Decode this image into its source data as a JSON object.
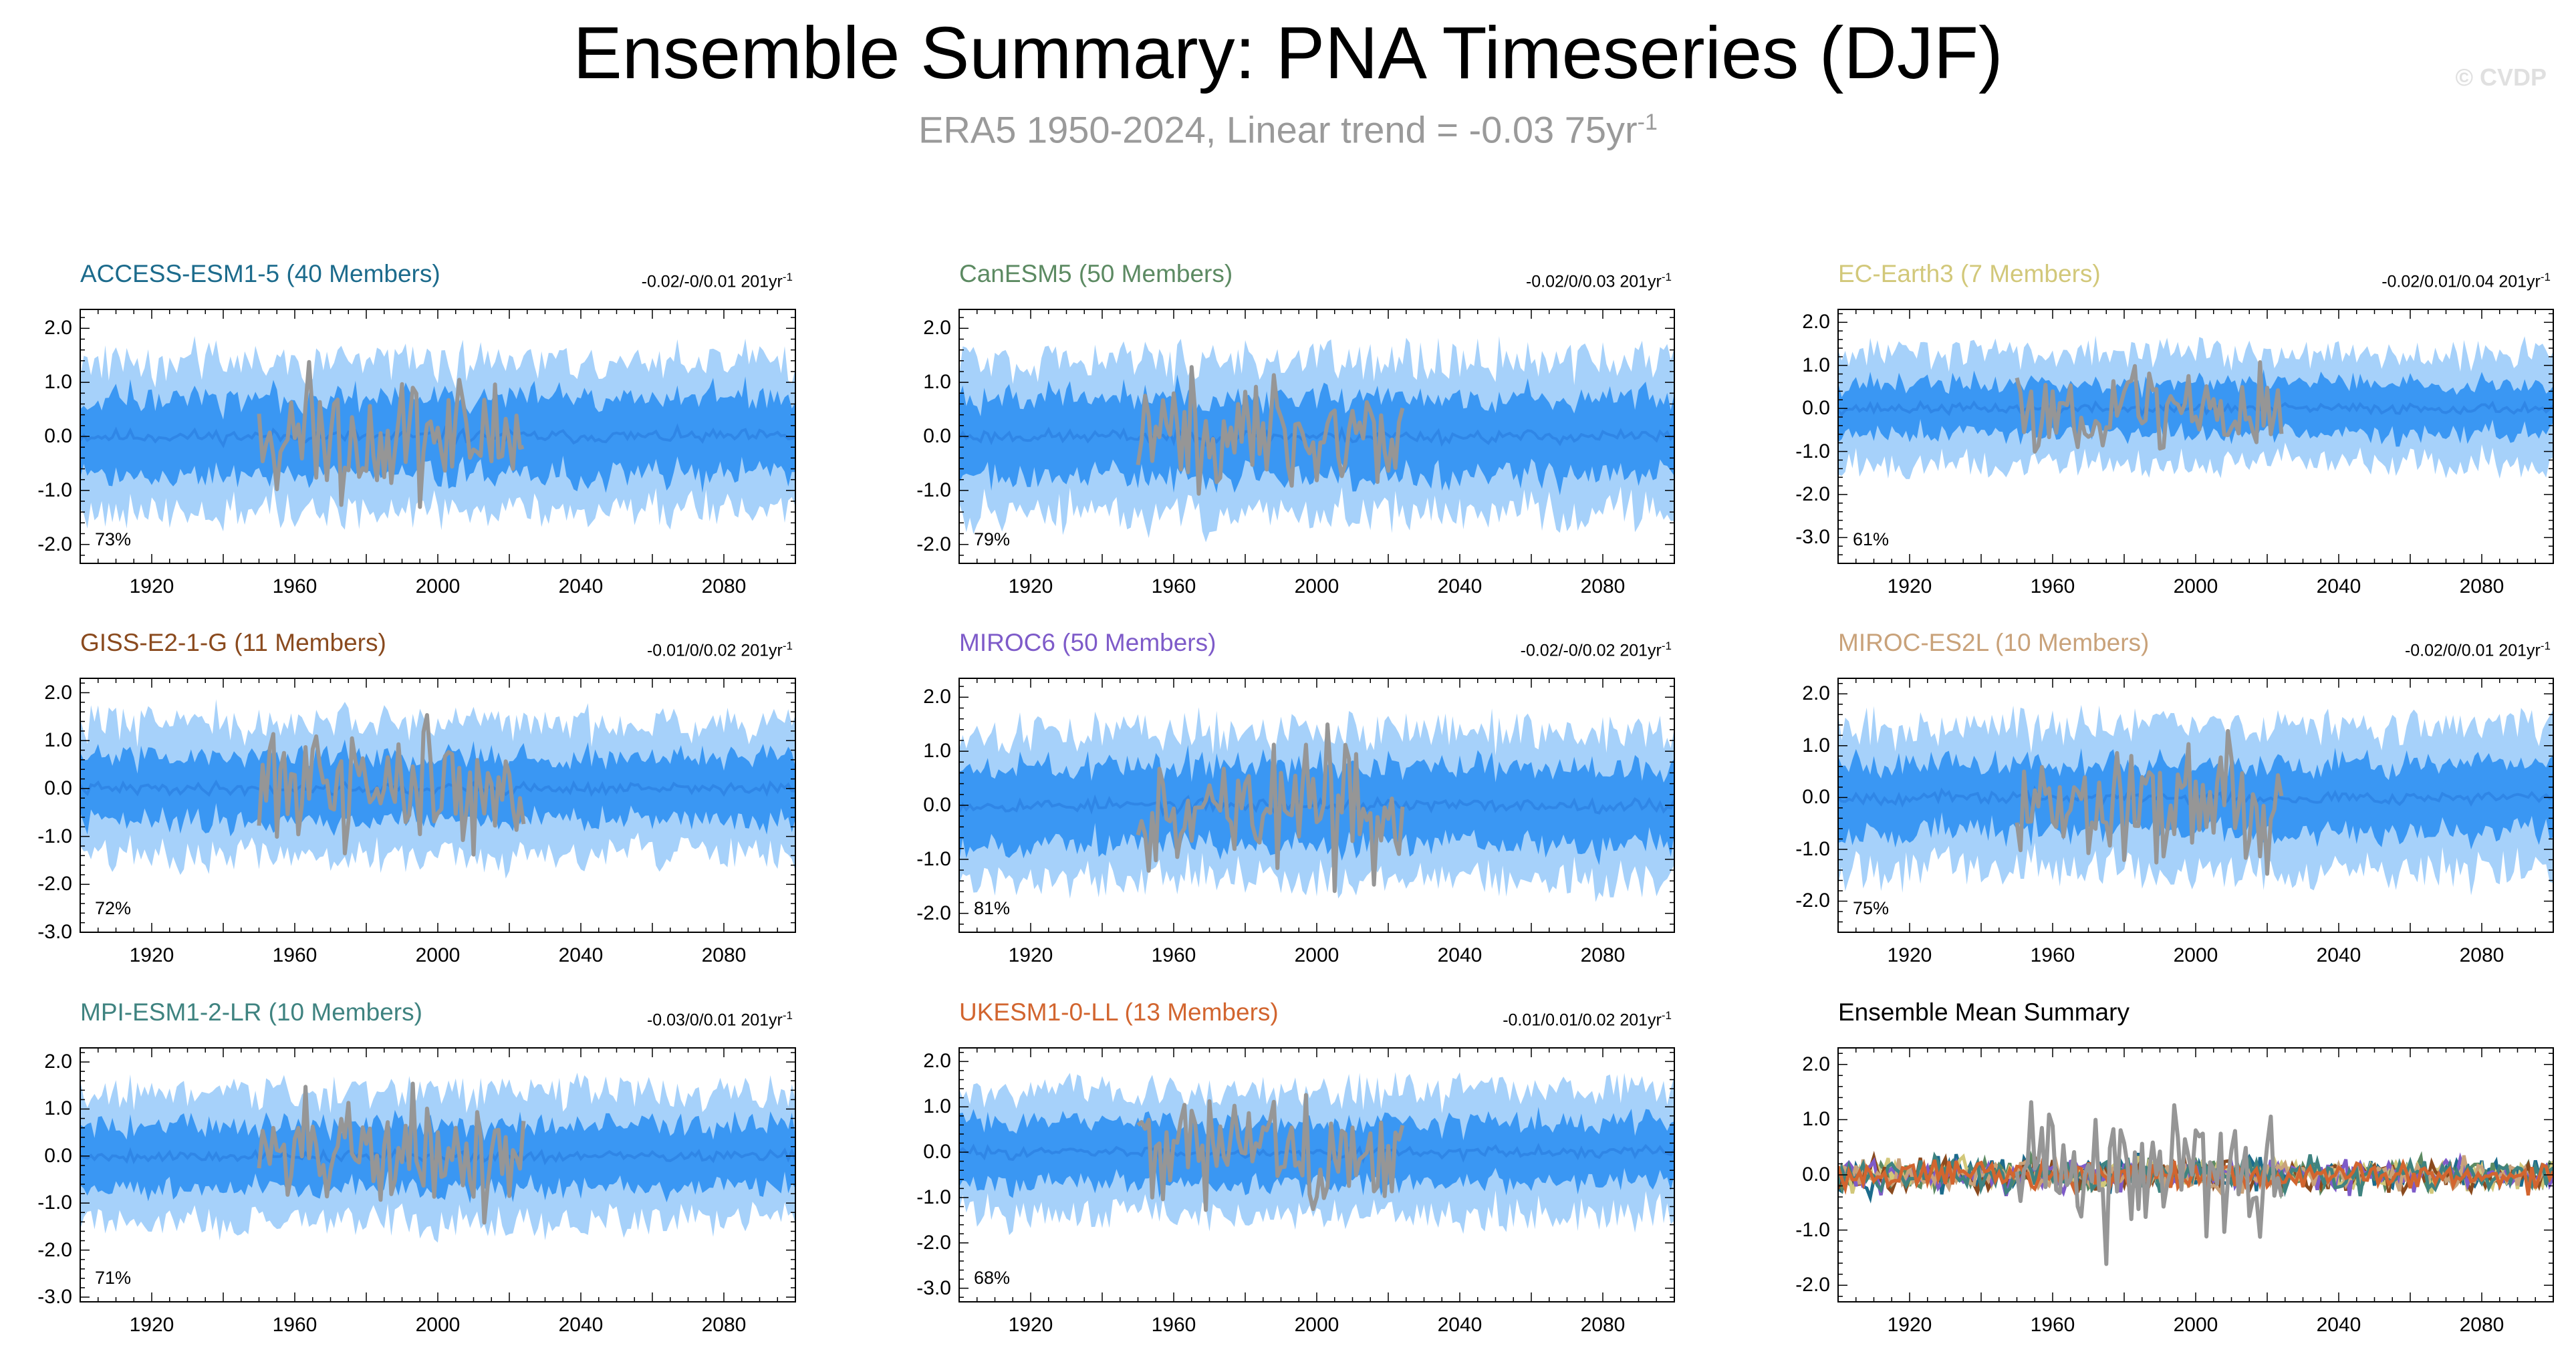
{
  "title": "Ensemble Summary: PNA Timeseries (DJF)",
  "subtitle": {
    "text": "ERA5 1950-2024, Linear trend = -0.03 75yr",
    "superscript": "-1"
  },
  "watermark": "© CVDP",
  "colors": {
    "band_outer": "#a6d1fa",
    "band_inner": "#3a97f3",
    "ensemble_mean": "#2f86e6",
    "observation": "#969696",
    "frame": "#000000"
  },
  "chart_data": [
    {
      "type": "line",
      "title": "ACCESS-ESM1-5 (40 Members)",
      "title_color": "#1c6b8c",
      "trend_text": "-0.02/-0/0.01 201yr",
      "trend_sup": "-1",
      "percent": "73%",
      "xlim": [
        1900,
        2100
      ],
      "ylim": [
        -2.35,
        2.35
      ],
      "yticks": [
        -2.0,
        -1.0,
        0.0,
        1.0,
        2.0
      ],
      "ytick_labels": [
        "-2.0",
        "-1.0",
        "0.0",
        "1.0",
        "2.0"
      ],
      "xticks": [
        1920,
        1960,
        2000,
        2040,
        2080
      ],
      "band_outer_halfwidth": 1.4,
      "band_inner_halfwidth": 0.75,
      "seed": 11,
      "observation": {
        "start": 1950,
        "end": 2024,
        "amplitude": 1.3
      }
    },
    {
      "type": "line",
      "title": "CanESM5 (50 Members)",
      "title_color": "#5c8a62",
      "trend_text": "-0.02/0/0.03 201yr",
      "trend_sup": "-1",
      "percent": "79%",
      "xlim": [
        1900,
        2100
      ],
      "ylim": [
        -2.35,
        2.35
      ],
      "yticks": [
        -2.0,
        -1.0,
        0.0,
        1.0,
        2.0
      ],
      "ytick_labels": [
        "-2.0",
        "-1.0",
        "0.0",
        "1.0",
        "2.0"
      ],
      "xticks": [
        1920,
        1960,
        2000,
        2040,
        2080
      ],
      "band_outer_halfwidth": 1.45,
      "band_inner_halfwidth": 0.75,
      "seed": 23,
      "observation": {
        "start": 1950,
        "end": 2024,
        "amplitude": 1.3
      }
    },
    {
      "type": "line",
      "title": "EC-Earth3 (7 Members)",
      "title_color": "#d2c87a",
      "trend_text": "-0.02/0.01/0.04 201yr",
      "trend_sup": "-1",
      "percent": "61%",
      "xlim": [
        1900,
        2100
      ],
      "ylim": [
        -3.6,
        2.3
      ],
      "yticks": [
        -3.0,
        -2.0,
        -1.0,
        0.0,
        1.0,
        2.0
      ],
      "ytick_labels": [
        "-3.0",
        "-2.0",
        "-1.0",
        "0.0",
        "1.0",
        "2.0"
      ],
      "xticks": [
        1920,
        1960,
        2000,
        2040,
        2080
      ],
      "band_outer_halfwidth": 1.3,
      "band_inner_halfwidth": 0.6,
      "seed": 37,
      "observation": {
        "start": 1950,
        "end": 2024,
        "amplitude": 1.3
      }
    },
    {
      "type": "line",
      "title": "GISS-E2-1-G (11 Members)",
      "title_color": "#8a4a1e",
      "trend_text": "-0.01/0/0.02 201yr",
      "trend_sup": "-1",
      "percent": "72%",
      "xlim": [
        1900,
        2100
      ],
      "ylim": [
        -3.0,
        2.3
      ],
      "yticks": [
        -3.0,
        -2.0,
        -1.0,
        0.0,
        1.0,
        2.0
      ],
      "ytick_labels": [
        "-3.0",
        "-2.0",
        "-1.0",
        "0.0",
        "1.0",
        "2.0"
      ],
      "xticks": [
        1920,
        1960,
        2000,
        2040,
        2080
      ],
      "band_outer_halfwidth": 1.4,
      "band_inner_halfwidth": 0.7,
      "seed": 41,
      "observation": {
        "start": 1950,
        "end": 2024,
        "amplitude": 1.3
      }
    },
    {
      "type": "line",
      "title": "MIROC6 (50 Members)",
      "title_color": "#7e5bc9",
      "trend_text": "-0.02/-0/0.02 201yr",
      "trend_sup": "-1",
      "percent": "81%",
      "xlim": [
        1900,
        2100
      ],
      "ylim": [
        -2.35,
        2.35
      ],
      "yticks": [
        -2.0,
        -1.0,
        0.0,
        1.0,
        2.0
      ],
      "ytick_labels": [
        "-2.0",
        "-1.0",
        "0.0",
        "1.0",
        "2.0"
      ],
      "xticks": [
        1920,
        1960,
        2000,
        2040,
        2080
      ],
      "band_outer_halfwidth": 1.4,
      "band_inner_halfwidth": 0.75,
      "seed": 53,
      "observation": {
        "start": 1950,
        "end": 2024,
        "amplitude": 1.3
      }
    },
    {
      "type": "line",
      "title": "MIROC-ES2L (10 Members)",
      "title_color": "#c9a27a",
      "trend_text": "-0.02/0/0.01 201yr",
      "trend_sup": "-1",
      "percent": "75%",
      "xlim": [
        1900,
        2100
      ],
      "ylim": [
        -2.6,
        2.3
      ],
      "yticks": [
        -2.0,
        -1.0,
        0.0,
        1.0,
        2.0
      ],
      "ytick_labels": [
        "-2.0",
        "-1.0",
        "0.0",
        "1.0",
        "2.0"
      ],
      "xticks": [
        1920,
        1960,
        2000,
        2040,
        2080
      ],
      "band_outer_halfwidth": 1.4,
      "band_inner_halfwidth": 0.7,
      "seed": 67,
      "observation": {
        "start": 1950,
        "end": 2024,
        "amplitude": 1.3
      }
    },
    {
      "type": "line",
      "title": "MPI-ESM1-2-LR (10 Members)",
      "title_color": "#3f8380",
      "trend_text": "-0.03/0/0.01 201yr",
      "trend_sup": "-1",
      "percent": "71%",
      "xlim": [
        1900,
        2100
      ],
      "ylim": [
        -3.1,
        2.3
      ],
      "yticks": [
        -3.0,
        -2.0,
        -1.0,
        0.0,
        1.0,
        2.0
      ],
      "ytick_labels": [
        "-3.0",
        "-2.0",
        "-1.0",
        "0.0",
        "1.0",
        "2.0"
      ],
      "xticks": [
        1920,
        1960,
        2000,
        2040,
        2080
      ],
      "band_outer_halfwidth": 1.4,
      "band_inner_halfwidth": 0.7,
      "seed": 79,
      "observation": {
        "start": 1950,
        "end": 2024,
        "amplitude": 1.3
      }
    },
    {
      "type": "line",
      "title": "UKESM1-0-LL (13 Members)",
      "title_color": "#d2652f",
      "trend_text": "-0.01/0.01/0.02 201yr",
      "trend_sup": "-1",
      "percent": "68%",
      "xlim": [
        1900,
        2100
      ],
      "ylim": [
        -3.3,
        2.3
      ],
      "yticks": [
        -3.0,
        -2.0,
        -1.0,
        0.0,
        1.0,
        2.0
      ],
      "ytick_labels": [
        "-3.0",
        "-2.0",
        "-1.0",
        "0.0",
        "1.0",
        "2.0"
      ],
      "xticks": [
        1920,
        1960,
        2000,
        2040,
        2080
      ],
      "band_outer_halfwidth": 1.4,
      "band_inner_halfwidth": 0.7,
      "seed": 83,
      "observation": {
        "start": 1950,
        "end": 2024,
        "amplitude": 1.3
      }
    },
    {
      "type": "line",
      "title": "Ensemble Mean Summary",
      "title_color": "#000000",
      "trend_text": "",
      "trend_sup": "",
      "percent": "",
      "summary": true,
      "xlim": [
        1900,
        2100
      ],
      "ylim": [
        -2.3,
        2.3
      ],
      "yticks": [
        -2.0,
        -1.0,
        0.0,
        1.0,
        2.0
      ],
      "ytick_labels": [
        "-2.0",
        "-1.0",
        "0.0",
        "1.0",
        "2.0"
      ],
      "xticks": [
        1920,
        1960,
        2000,
        2040,
        2080
      ],
      "seed": 97,
      "series_colors": [
        "#1c6b8c",
        "#5c8a62",
        "#d2c87a",
        "#8a4a1e",
        "#7e5bc9",
        "#c9a27a",
        "#3f8380",
        "#d2652f"
      ],
      "observation": {
        "start": 1950,
        "end": 2024,
        "amplitude": 1.3
      }
    }
  ]
}
